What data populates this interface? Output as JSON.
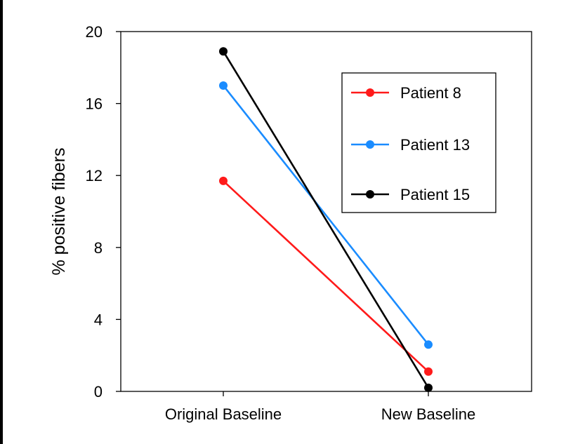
{
  "chart_data": {
    "type": "line",
    "title": "",
    "xlabel": "",
    "ylabel": "% positive fibers",
    "categories": [
      "Original Baseline",
      "New Baseline"
    ],
    "ylim": [
      0,
      20
    ],
    "yticks": [
      0,
      4,
      8,
      12,
      16,
      20
    ],
    "grid": false,
    "legend_position": "top-right",
    "series": [
      {
        "name": "Patient 8",
        "color": "#ff1a1a",
        "values": [
          11.7,
          1.1
        ]
      },
      {
        "name": "Patient 13",
        "color": "#1a8cff",
        "values": [
          17.0,
          2.6
        ]
      },
      {
        "name": "Patient 15",
        "color": "#000000",
        "values": [
          18.9,
          0.2
        ]
      }
    ]
  }
}
